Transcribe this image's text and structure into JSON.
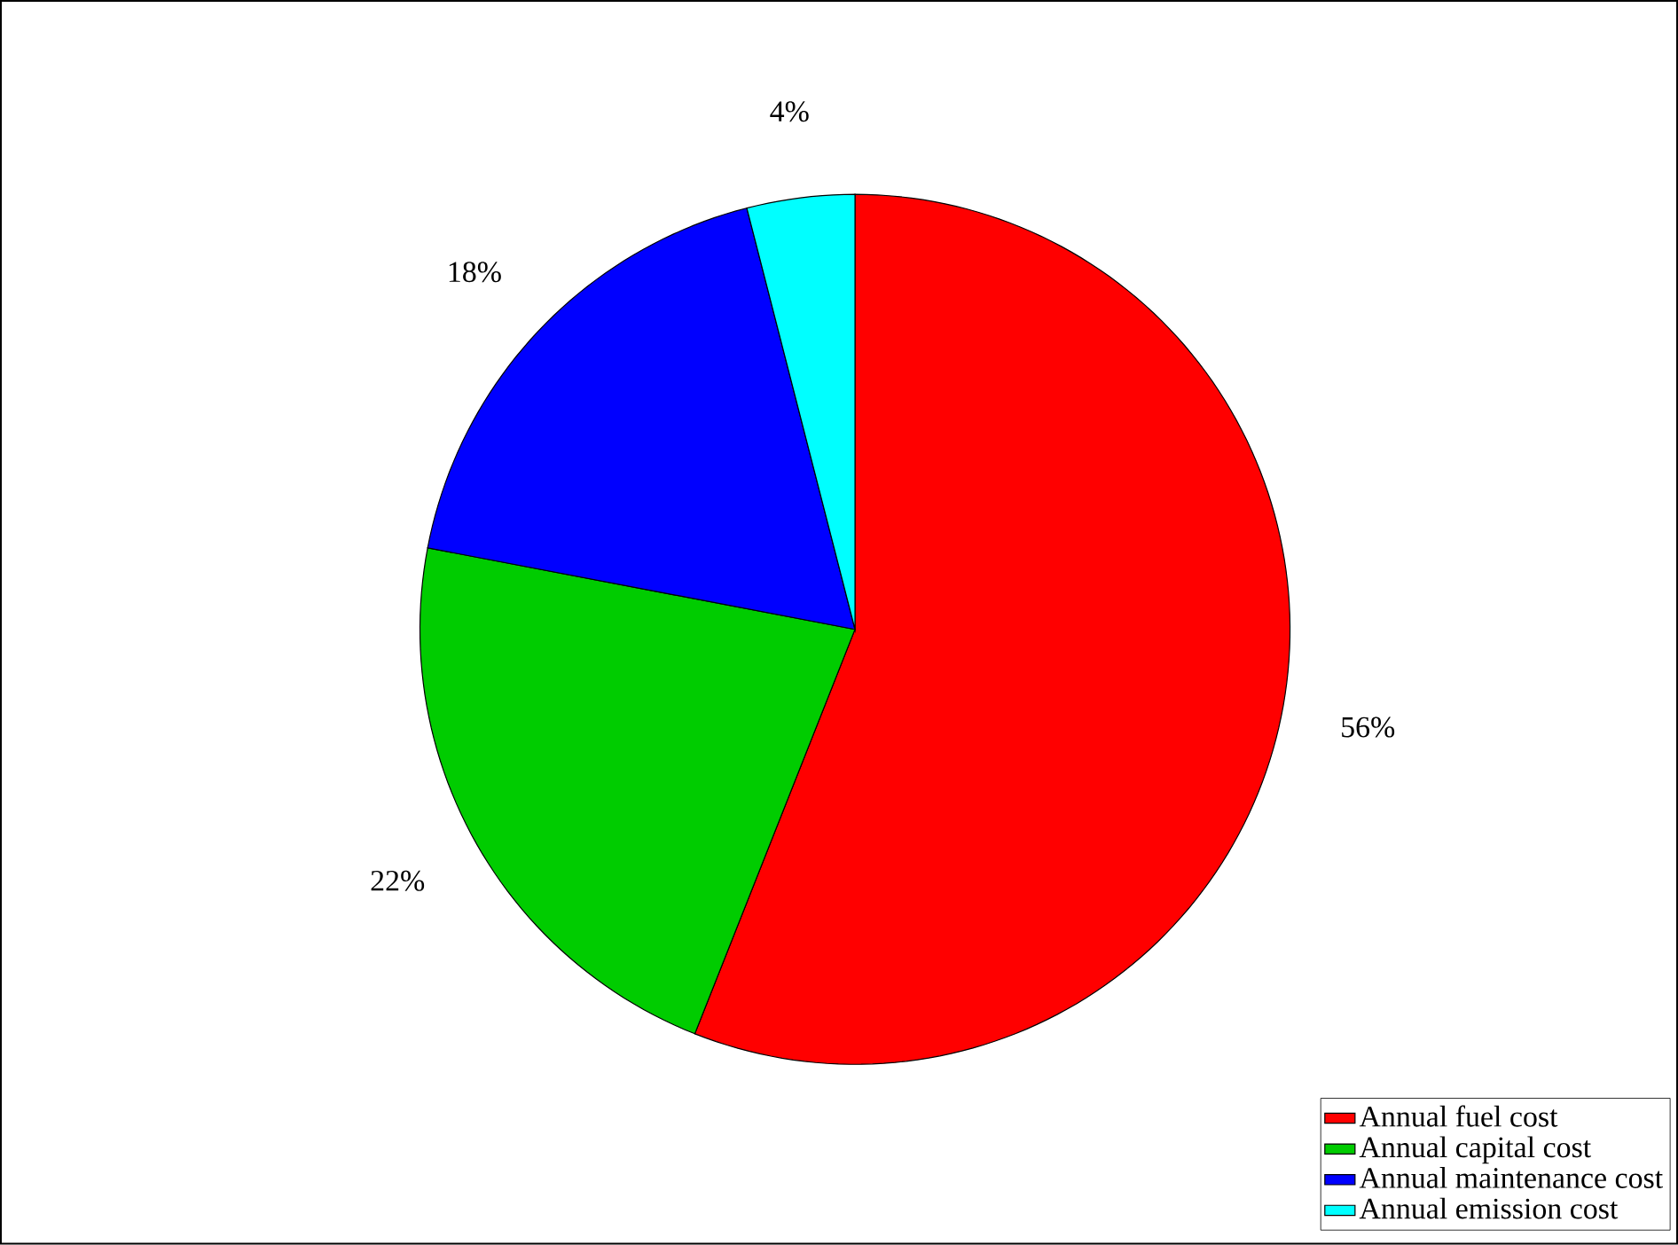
{
  "chart_data": {
    "type": "pie",
    "categories": [
      "Annual fuel cost",
      "Annual capital cost",
      "Annual maintenance cost",
      "Annual emission cost"
    ],
    "values": [
      56,
      22,
      18,
      4
    ],
    "colors": [
      "#ff0000",
      "#00cc00",
      "#0000ff",
      "#00ffff"
    ],
    "value_labels": [
      "56%",
      "22%",
      "18%",
      "4%"
    ],
    "legend": "bottom right"
  }
}
